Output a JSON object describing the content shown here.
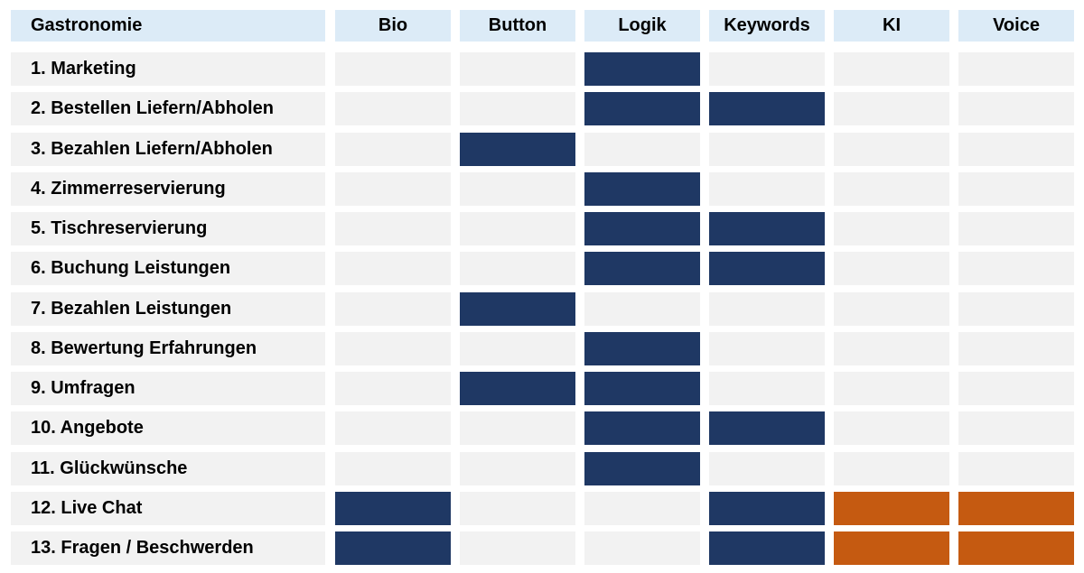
{
  "table": {
    "title": "Gastronomie",
    "columns": [
      "Bio",
      "Button",
      "Logik",
      "Keywords",
      "KI",
      "Voice"
    ],
    "colors": {
      "empty": "#f2f2f2",
      "blue": "#1f3864",
      "orange": "#c55a11",
      "header": "#dcebf7"
    },
    "rows": [
      {
        "label": "1. Marketing",
        "cells": [
          "",
          "",
          "blue",
          "",
          "",
          ""
        ]
      },
      {
        "label": "2. Bestellen Liefern/Abholen",
        "cells": [
          "",
          "",
          "blue",
          "blue",
          "",
          ""
        ]
      },
      {
        "label": "3. Bezahlen Liefern/Abholen",
        "cells": [
          "",
          "blue",
          "",
          "",
          "",
          ""
        ]
      },
      {
        "label": "4. Zimmerreservierung",
        "cells": [
          "",
          "",
          "blue",
          "",
          "",
          ""
        ]
      },
      {
        "label": "5. Tischreservierung",
        "cells": [
          "",
          "",
          "blue",
          "blue",
          "",
          ""
        ]
      },
      {
        "label": "6. Buchung Leistungen",
        "cells": [
          "",
          "",
          "blue",
          "blue",
          "",
          ""
        ]
      },
      {
        "label": "7. Bezahlen Leistungen",
        "cells": [
          "",
          "blue",
          "",
          "",
          "",
          ""
        ]
      },
      {
        "label": "8. Bewertung Erfahrungen",
        "cells": [
          "",
          "",
          "blue",
          "",
          "",
          ""
        ]
      },
      {
        "label": "9. Umfragen",
        "cells": [
          "",
          "blue",
          "blue",
          "",
          "",
          ""
        ]
      },
      {
        "label": "10. Angebote",
        "cells": [
          "",
          "",
          "blue",
          "blue",
          "",
          ""
        ]
      },
      {
        "label": "11. Glückwünsche",
        "cells": [
          "",
          "",
          "blue",
          "",
          "",
          ""
        ]
      },
      {
        "label": "12. Live Chat",
        "cells": [
          "blue",
          "",
          "",
          "blue",
          "orange",
          "orange"
        ]
      },
      {
        "label": "13. Fragen / Beschwerden",
        "cells": [
          "blue",
          "",
          "",
          "blue",
          "orange",
          "orange"
        ]
      }
    ]
  }
}
